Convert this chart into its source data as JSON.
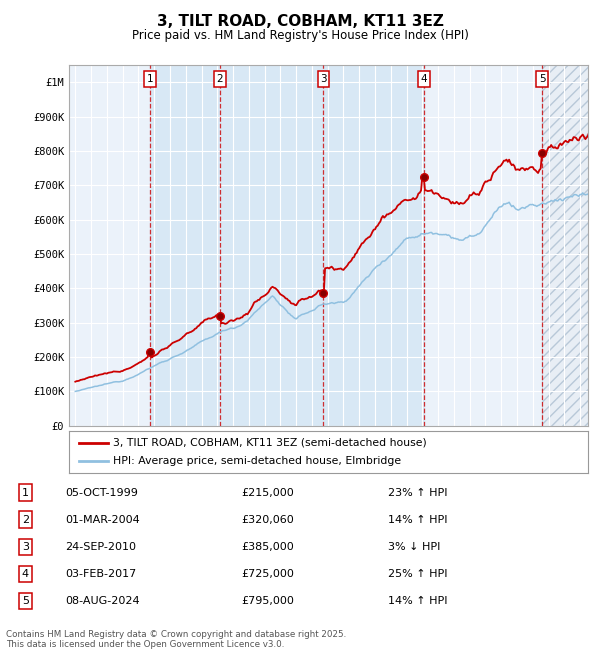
{
  "title": "3, TILT ROAD, COBHAM, KT11 3EZ",
  "subtitle": "Price paid vs. HM Land Registry's House Price Index (HPI)",
  "ylim": [
    0,
    1050000
  ],
  "yticks": [
    0,
    100000,
    200000,
    300000,
    400000,
    500000,
    600000,
    700000,
    800000,
    900000,
    1000000
  ],
  "ytick_labels": [
    "£0",
    "£100K",
    "£200K",
    "£300K",
    "£400K",
    "£500K",
    "£600K",
    "£700K",
    "£800K",
    "£900K",
    "£1M"
  ],
  "sale_dates_num": [
    1999.75,
    2004.17,
    2010.73,
    2017.09,
    2024.6
  ],
  "sale_prices": [
    215000,
    320060,
    385000,
    725000,
    795000
  ],
  "sale_labels": [
    "1",
    "2",
    "3",
    "4",
    "5"
  ],
  "sale_dates_str": [
    "05-OCT-1999",
    "01-MAR-2004",
    "24-SEP-2010",
    "03-FEB-2017",
    "08-AUG-2024"
  ],
  "sale_hpi_pct": [
    "23% ↑ HPI",
    "14% ↑ HPI",
    "3% ↓ HPI",
    "25% ↑ HPI",
    "14% ↑ HPI"
  ],
  "hpi_color": "#90C0E0",
  "price_color": "#CC0000",
  "bg_color": "#EBF2FA",
  "legend_label_price": "3, TILT ROAD, COBHAM, KT11 3EZ (semi-detached house)",
  "legend_label_hpi": "HPI: Average price, semi-detached house, Elmbridge",
  "footer_text": "Contains HM Land Registry data © Crown copyright and database right 2025.\nThis data is licensed under the Open Government Licence v3.0.",
  "xmin": 1994.6,
  "xmax": 2027.5
}
